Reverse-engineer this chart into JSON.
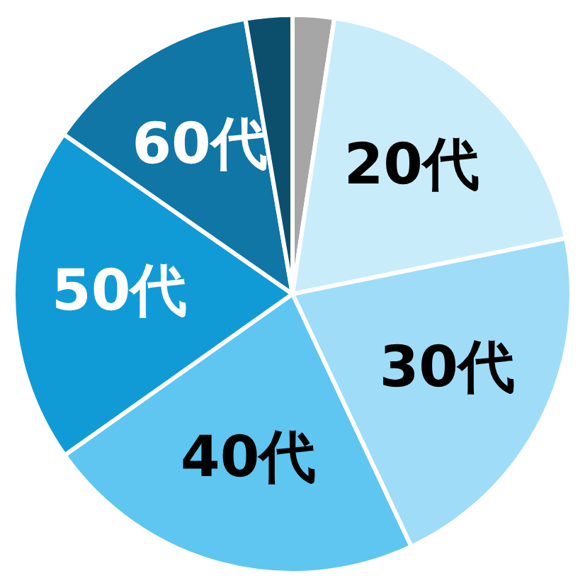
{
  "chart_data": {
    "type": "pie",
    "categories": [
      null,
      "20代",
      "30代",
      "40代",
      "50代",
      "60代",
      null
    ],
    "values": [
      2.4,
      19.4,
      21.2,
      22.2,
      19.5,
      12.6,
      2.7
    ],
    "colors": [
      "#a6a6a6",
      "#c9ecfa",
      "#9fdcf7",
      "#5ec6f0",
      "#119bd6",
      "#0f76a6",
      "#0b4f6c"
    ],
    "legend": false
  }
}
